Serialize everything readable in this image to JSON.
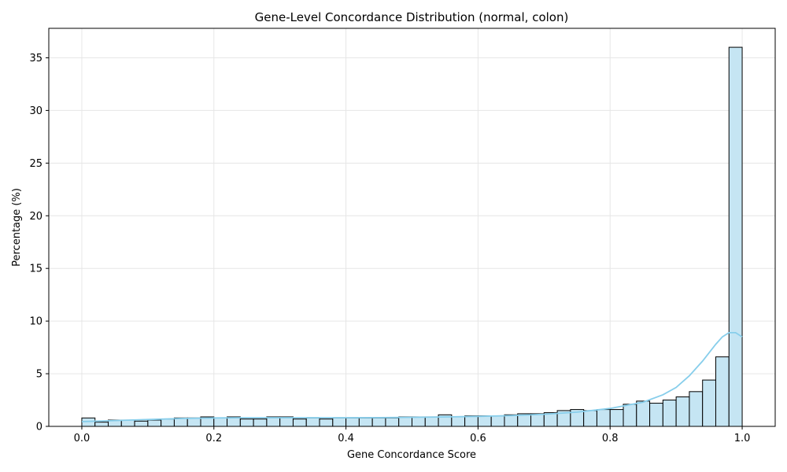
{
  "chart_data": {
    "type": "bar",
    "title": "Gene-Level Concordance Distribution (normal, colon)",
    "xlabel": "Gene Concordance Score",
    "ylabel": "Percentage (%)",
    "xlim": [
      -0.05,
      1.05
    ],
    "ylim": [
      0,
      37.8
    ],
    "xticks": [
      0.0,
      0.2,
      0.4,
      0.6,
      0.8,
      1.0
    ],
    "xtick_labels": [
      "0.0",
      "0.2",
      "0.4",
      "0.6",
      "0.8",
      "1.0"
    ],
    "yticks": [
      0,
      5,
      10,
      15,
      20,
      25,
      30,
      35
    ],
    "ytick_labels": [
      "0",
      "5",
      "10",
      "15",
      "20",
      "25",
      "30",
      "35"
    ],
    "grid": true,
    "bins": {
      "start": 0.0,
      "width": 0.02,
      "values": [
        0.8,
        0.4,
        0.6,
        0.6,
        0.5,
        0.6,
        0.7,
        0.8,
        0.8,
        0.9,
        0.8,
        0.9,
        0.7,
        0.7,
        0.9,
        0.9,
        0.7,
        0.8,
        0.7,
        0.8,
        0.8,
        0.8,
        0.8,
        0.8,
        0.9,
        0.9,
        0.9,
        1.1,
        0.9,
        1.0,
        1.0,
        1.0,
        1.1,
        1.2,
        1.2,
        1.3,
        1.5,
        1.6,
        1.5,
        1.6,
        1.6,
        2.1,
        2.4,
        2.2,
        2.5,
        2.8,
        3.3,
        4.4,
        6.6,
        36.0
      ]
    },
    "kde": {
      "x": [
        0.0,
        0.05,
        0.1,
        0.15,
        0.2,
        0.25,
        0.3,
        0.35,
        0.4,
        0.45,
        0.5,
        0.55,
        0.6,
        0.65,
        0.7,
        0.75,
        0.8,
        0.85,
        0.88,
        0.9,
        0.92,
        0.94,
        0.95,
        0.96,
        0.97,
        0.98,
        0.99,
        1.0
      ],
      "y": [
        0.45,
        0.55,
        0.65,
        0.75,
        0.8,
        0.82,
        0.82,
        0.82,
        0.82,
        0.83,
        0.86,
        0.9,
        0.95,
        1.02,
        1.15,
        1.35,
        1.7,
        2.3,
        3.0,
        3.7,
        4.8,
        6.2,
        7.0,
        7.8,
        8.5,
        8.9,
        8.9,
        8.5
      ]
    },
    "colors": {
      "bar_fill": "#c5e5f3",
      "bar_edge": "#000000",
      "kde_line": "#87ceeb",
      "grid": "#e6e6e6"
    }
  }
}
